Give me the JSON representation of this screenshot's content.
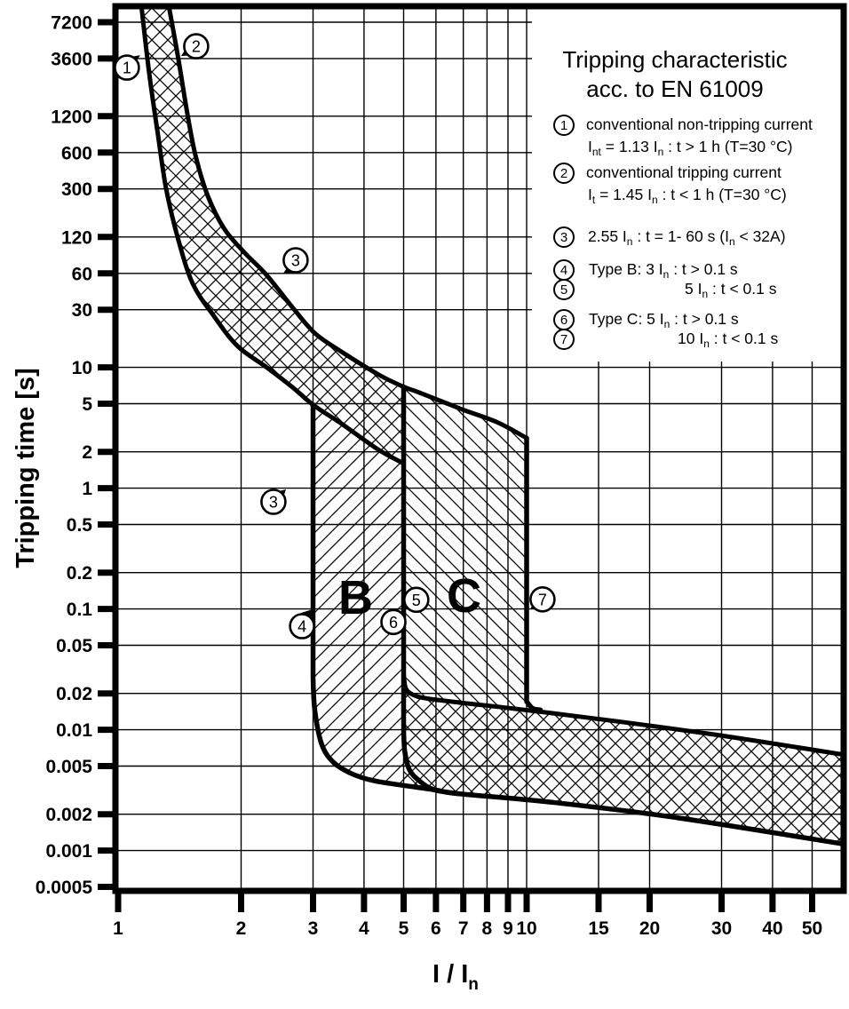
{
  "colors": {
    "ink": "#000000",
    "background": "#ffffff"
  },
  "title": [
    "Tripping characteristic",
    "acc. to EN 61009"
  ],
  "y_axis": {
    "title": "Tripping time [s]",
    "ticks": [
      {
        "label": "7200",
        "t": 7200
      },
      {
        "label": "3600",
        "t": 3600
      },
      {
        "label": "1200",
        "t": 1200
      },
      {
        "label": "600",
        "t": 600
      },
      {
        "label": "300",
        "t": 300
      },
      {
        "label": "120",
        "t": 120
      },
      {
        "label": "60",
        "t": 60
      },
      {
        "label": "30",
        "t": 30
      },
      {
        "label": "10",
        "t": 10
      },
      {
        "label": "5",
        "t": 5
      },
      {
        "label": "2",
        "t": 2
      },
      {
        "label": "1",
        "t": 1
      },
      {
        "label": "0.5",
        "t": 0.5
      },
      {
        "label": "0.2",
        "t": 0.2
      },
      {
        "label": "0.1",
        "t": 0.1
      },
      {
        "label": "0.05",
        "t": 0.05
      },
      {
        "label": "0.02",
        "t": 0.02
      },
      {
        "label": "0.01",
        "t": 0.01
      },
      {
        "label": "0.005",
        "t": 0.005
      },
      {
        "label": "0.002",
        "t": 0.002
      },
      {
        "label": "0.001",
        "t": 0.001
      },
      {
        "label": "0.0005",
        "t": 0.0005
      }
    ]
  },
  "x_axis": {
    "title": [
      "I / I",
      "n"
    ],
    "ticks": [
      {
        "label": "1",
        "v": 1
      },
      {
        "label": "2",
        "v": 2
      },
      {
        "label": "3",
        "v": 3
      },
      {
        "label": "4",
        "v": 4
      },
      {
        "label": "5",
        "v": 5
      },
      {
        "label": "6",
        "v": 6
      },
      {
        "label": "7",
        "v": 7
      },
      {
        "label": "8",
        "v": 8
      },
      {
        "label": "9",
        "v": 9
      },
      {
        "label": "10",
        "v": 10
      },
      {
        "label": "15",
        "v": 15
      },
      {
        "label": "20",
        "v": 20
      },
      {
        "label": "30",
        "v": 30
      },
      {
        "label": "40",
        "v": 40
      },
      {
        "label": "50",
        "v": 50
      }
    ]
  },
  "region_labels": {
    "b": "B",
    "c": "C"
  },
  "legend": {
    "items": [
      {
        "num": "1",
        "line1": "conventional non-tripping current",
        "line2": [
          "I",
          "nt",
          "  = 1.13 I",
          "n",
          " :  t > 1 h   (T=30 °C)"
        ]
      },
      {
        "num": "2",
        "line1": "conventional tripping current",
        "line2": [
          "I",
          "t",
          "  = 1.45 I",
          "n",
          " :  t < 1 h   (T=30 °C)"
        ]
      },
      {
        "num": "3",
        "line1": "",
        "line2": [
          "2.55 I",
          "n",
          "  : t = 1- 60 s (I",
          "n",
          " < 32A)"
        ]
      },
      {
        "num": "4",
        "line1": "",
        "line2": [
          "Type B: 3 I",
          "n",
          " :  t > 0.1 s"
        ]
      },
      {
        "num": "5",
        "line1": "",
        "line2": [
          "5 I",
          "n",
          " :  t < 0.1 s"
        ]
      },
      {
        "num": "6",
        "line1": "",
        "line2": [
          "Type C: 5 I",
          "n",
          " : t > 0.1 s"
        ]
      },
      {
        "num": "7",
        "line1": "",
        "line2": [
          "10 I",
          "n",
          " : t < 0.1 s"
        ]
      }
    ]
  },
  "chart_data": {
    "type": "line",
    "title": "Tripping characteristic acc. to EN 61009",
    "xlabel": "I / In",
    "ylabel": "Tripping time [s]",
    "x_scale": "log",
    "y_scale": "log",
    "xlim": [
      1,
      60
    ],
    "ylim": [
      0.0005,
      9900
    ],
    "grid": true,
    "curves": {
      "curve1_non_tripping": [
        [
          1.14,
          9900
        ],
        [
          1.19,
          2800
        ],
        [
          1.25,
          870
        ],
        [
          1.31,
          305
        ],
        [
          1.4,
          118
        ],
        [
          1.52,
          50
        ],
        [
          1.71,
          27
        ],
        [
          1.96,
          15
        ],
        [
          2.31,
          10
        ],
        [
          2.68,
          6.8
        ],
        [
          3.0,
          4.9
        ],
        [
          3.53,
          3.4
        ],
        [
          4.32,
          2.1
        ],
        [
          5.0,
          1.6
        ]
      ],
      "curve2_tripping": [
        [
          1.33,
          9900
        ],
        [
          1.4,
          3800
        ],
        [
          1.48,
          1220
        ],
        [
          1.55,
          550
        ],
        [
          1.66,
          260
        ],
        [
          1.82,
          140
        ],
        [
          2.04,
          89
        ],
        [
          2.31,
          58
        ],
        [
          2.68,
          31
        ],
        [
          3.04,
          19
        ],
        [
          3.58,
          13
        ],
        [
          4.37,
          8.6
        ],
        [
          5.0,
          6.9
        ],
        [
          5.45,
          6.2
        ],
        [
          6.94,
          4.5
        ],
        [
          8.49,
          3.5
        ],
        [
          10.0,
          2.6
        ]
      ],
      "b_vertical": {
        "x": 3,
        "top": 4.9,
        "bottom": 0.027
      },
      "b_bottom": [
        [
          3,
          0.027
        ],
        [
          3.03,
          0.0145
        ],
        [
          3.15,
          0.0076
        ],
        [
          3.36,
          0.0054
        ],
        [
          3.72,
          0.00435
        ],
        [
          4.2,
          0.0038
        ],
        [
          5.0,
          0.00346
        ],
        [
          5.97,
          0.00318
        ],
        [
          6.77,
          0.00296
        ],
        [
          11.4,
          0.00252
        ],
        [
          23.1,
          0.00188
        ],
        [
          60,
          0.00113
        ]
      ],
      "c_left_vertical": {
        "x": 5,
        "top": 6.9,
        "bottom": 0.0099
      },
      "c_round": [
        [
          5,
          0.0099
        ],
        [
          5.03,
          0.0067
        ],
        [
          5.16,
          0.0047
        ],
        [
          5.45,
          0.0038
        ],
        [
          5.91,
          0.0032
        ],
        [
          6.77,
          0.00296
        ]
      ],
      "c_right_vertical": {
        "x": 10,
        "top": 2.6,
        "bottom": 0.0171
      },
      "c_right_round": [
        [
          10,
          0.0171
        ],
        [
          10.35,
          0.015
        ],
        [
          10.8,
          0.0146
        ]
      ],
      "band_top": [
        [
          5,
          0.029
        ],
        [
          5.06,
          0.022
        ],
        [
          5.27,
          0.0195
        ],
        [
          5.67,
          0.0182
        ],
        [
          6.94,
          0.0167
        ],
        [
          8.49,
          0.0155
        ],
        [
          11.4,
          0.0138
        ],
        [
          17.1,
          0.0116
        ],
        [
          28.3,
          0.0092
        ],
        [
          42.1,
          0.0075
        ],
        [
          60,
          0.0062
        ]
      ]
    },
    "annotations": [
      {
        "num": "1",
        "v": 1.051,
        "t": 3030,
        "wedge": [
          [
            15,
            -14
          ],
          [
            -2,
            -11
          ],
          [
            4,
            3
          ]
        ]
      },
      {
        "num": "2",
        "v": 1.553,
        "t": 4550,
        "wedge": [
          [
            -17,
            11
          ],
          [
            -6,
            -6
          ],
          [
            -5,
            10
          ]
        ]
      },
      {
        "num": "3",
        "v": 2.72,
        "t": 77,
        "wedge": [
          [
            -14,
            15
          ],
          [
            -2,
            -4
          ],
          [
            0,
            14
          ]
        ]
      },
      {
        "num": "3",
        "v": 2.4,
        "t": 0.77,
        "wedge": [
          [
            14,
            -14
          ],
          [
            2,
            -11
          ],
          [
            8,
            5
          ]
        ]
      },
      {
        "num": "4",
        "v": 2.82,
        "t": 0.072,
        "wedge": [
          [
            12,
            -19
          ],
          [
            -1,
            -15
          ],
          [
            7,
            -2
          ]
        ]
      },
      {
        "num": "5",
        "v": 5.37,
        "t": 0.119,
        "wedge": [
          [
            -13,
            10
          ],
          [
            -2,
            -7
          ],
          [
            0,
            10
          ]
        ]
      },
      {
        "num": "6",
        "v": 4.72,
        "t": 0.078,
        "wedge": [
          [
            12,
            -11
          ],
          [
            -2,
            -7
          ],
          [
            6,
            6
          ]
        ]
      },
      {
        "num": "7",
        "v": 10.94,
        "t": 0.12,
        "wedge": [
          [
            -14,
            11
          ],
          [
            -3,
            -6
          ],
          [
            -1,
            11
          ]
        ]
      }
    ]
  }
}
